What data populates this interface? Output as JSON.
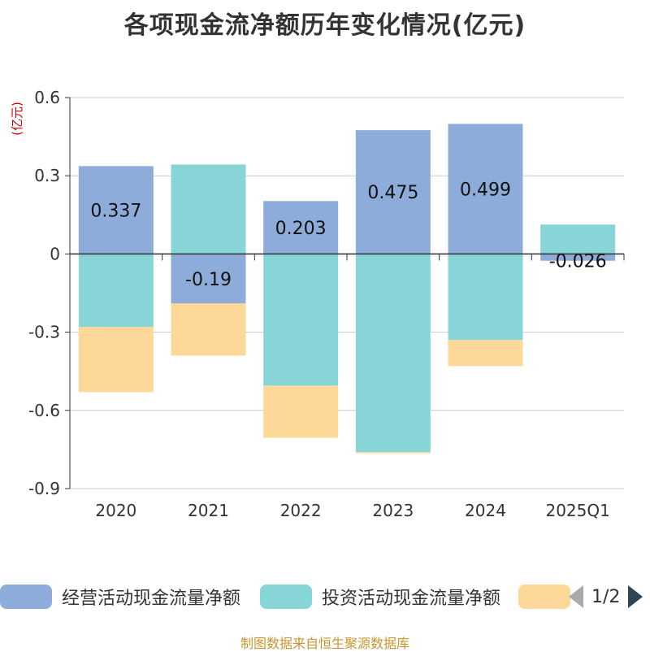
{
  "chart_data": {
    "type": "bar",
    "title": "各项现金流净额历年变化情况(亿元)",
    "unit_label": "(亿元)",
    "categories": [
      "2020",
      "2021",
      "2022",
      "2023",
      "2024",
      "2025Q1"
    ],
    "ylim": [
      -0.9,
      0.6
    ],
    "yticks": [
      "0.6",
      "0.3",
      "0",
      "-0.3",
      "-0.6",
      "-0.9"
    ],
    "grid": true,
    "stacked": true,
    "series": [
      {
        "name": "经营活动现金流量净额",
        "color": "#8eacd9",
        "values": [
          0.337,
          -0.19,
          0.203,
          0.475,
          0.499,
          -0.026
        ],
        "labels": [
          "0.337",
          "-0.19",
          "0.203",
          "0.475",
          "0.499",
          "-0.026"
        ]
      },
      {
        "name": "投资活动现金流量净额",
        "color": "#88d5d8",
        "values": [
          -0.28,
          0.343,
          -0.505,
          -0.76,
          -0.33,
          0.113
        ]
      },
      {
        "name": "",
        "color": "#fdd899",
        "values": [
          -0.25,
          -0.2,
          -0.2,
          -0.005,
          -0.1,
          0
        ]
      }
    ]
  },
  "legend": {
    "page": "1/2"
  },
  "footer": "制图数据来自恒生聚源数据库"
}
